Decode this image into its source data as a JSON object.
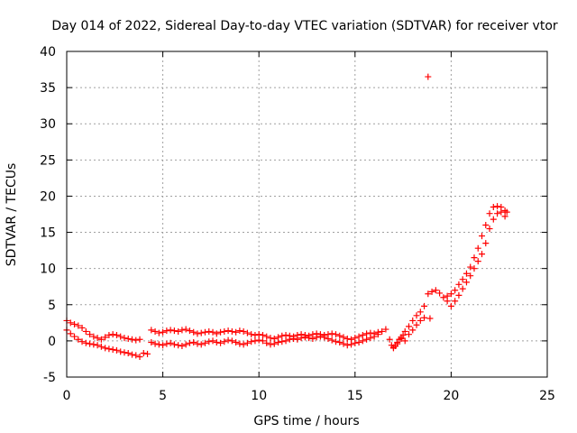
{
  "chart_data": {
    "type": "scatter",
    "title": "Day 014 of 2022, Sidereal Day-to-day VTEC variation (SDTVAR) for receiver vtor",
    "xlabel": "GPS time / hours",
    "ylabel": "SDTVAR / TECUs",
    "xlim": [
      0,
      25
    ],
    "ylim": [
      -5,
      40
    ],
    "xticks": [
      0,
      5,
      10,
      15,
      20,
      25
    ],
    "yticks": [
      -5,
      0,
      5,
      10,
      15,
      20,
      25,
      30,
      35,
      40
    ],
    "grid": true,
    "marker": "+",
    "color": "#ff0000",
    "series": [
      {
        "name": "SDTVAR",
        "points": [
          [
            0.0,
            2.8
          ],
          [
            0.2,
            2.5
          ],
          [
            0.4,
            2.3
          ],
          [
            0.6,
            2.1
          ],
          [
            0.8,
            1.8
          ],
          [
            1.0,
            1.3
          ],
          [
            1.2,
            0.9
          ],
          [
            1.4,
            0.6
          ],
          [
            1.6,
            0.4
          ],
          [
            1.8,
            0.2
          ],
          [
            2.0,
            0.5
          ],
          [
            2.2,
            0.8
          ],
          [
            2.4,
            0.9
          ],
          [
            2.6,
            0.8
          ],
          [
            2.8,
            0.6
          ],
          [
            3.0,
            0.4
          ],
          [
            3.2,
            0.3
          ],
          [
            3.4,
            0.2
          ],
          [
            3.6,
            0.1
          ],
          [
            3.8,
            0.2
          ],
          [
            0.0,
            1.5
          ],
          [
            0.2,
            1.0
          ],
          [
            0.4,
            0.6
          ],
          [
            0.6,
            0.2
          ],
          [
            0.8,
            -0.1
          ],
          [
            1.0,
            -0.3
          ],
          [
            1.2,
            -0.4
          ],
          [
            1.4,
            -0.5
          ],
          [
            1.6,
            -0.6
          ],
          [
            1.8,
            -0.8
          ],
          [
            2.0,
            -1.0
          ],
          [
            2.2,
            -1.1
          ],
          [
            2.4,
            -1.2
          ],
          [
            2.6,
            -1.3
          ],
          [
            2.8,
            -1.5
          ],
          [
            3.0,
            -1.6
          ],
          [
            3.2,
            -1.7
          ],
          [
            3.4,
            -1.9
          ],
          [
            3.6,
            -2.0
          ],
          [
            3.8,
            -2.2
          ],
          [
            4.0,
            -1.7
          ],
          [
            4.2,
            -1.8
          ],
          [
            4.4,
            1.5
          ],
          [
            4.6,
            1.3
          ],
          [
            4.8,
            1.1
          ],
          [
            5.0,
            1.2
          ],
          [
            5.2,
            1.4
          ],
          [
            5.4,
            1.5
          ],
          [
            5.6,
            1.4
          ],
          [
            5.8,
            1.3
          ],
          [
            6.0,
            1.5
          ],
          [
            6.2,
            1.6
          ],
          [
            6.4,
            1.4
          ],
          [
            6.6,
            1.2
          ],
          [
            6.8,
            1.0
          ],
          [
            7.0,
            1.1
          ],
          [
            7.2,
            1.2
          ],
          [
            7.4,
            1.3
          ],
          [
            7.6,
            1.2
          ],
          [
            7.8,
            1.0
          ],
          [
            8.0,
            1.2
          ],
          [
            8.2,
            1.3
          ],
          [
            8.4,
            1.4
          ],
          [
            8.6,
            1.3
          ],
          [
            8.8,
            1.2
          ],
          [
            9.0,
            1.4
          ],
          [
            9.2,
            1.3
          ],
          [
            9.4,
            1.1
          ],
          [
            9.6,
            0.9
          ],
          [
            9.8,
            0.8
          ],
          [
            10.0,
            0.9
          ],
          [
            10.2,
            0.8
          ],
          [
            4.4,
            -0.2
          ],
          [
            4.6,
            -0.4
          ],
          [
            4.8,
            -0.5
          ],
          [
            5.0,
            -0.6
          ],
          [
            5.2,
            -0.4
          ],
          [
            5.4,
            -0.3
          ],
          [
            5.6,
            -0.5
          ],
          [
            5.8,
            -0.6
          ],
          [
            6.0,
            -0.7
          ],
          [
            6.2,
            -0.5
          ],
          [
            6.4,
            -0.3
          ],
          [
            6.6,
            -0.2
          ],
          [
            6.8,
            -0.4
          ],
          [
            7.0,
            -0.5
          ],
          [
            7.2,
            -0.3
          ],
          [
            7.4,
            -0.1
          ],
          [
            7.6,
            0.0
          ],
          [
            7.8,
            -0.2
          ],
          [
            8.0,
            -0.3
          ],
          [
            8.2,
            -0.1
          ],
          [
            8.4,
            0.1
          ],
          [
            8.6,
            0.0
          ],
          [
            8.8,
            -0.2
          ],
          [
            9.0,
            -0.4
          ],
          [
            9.2,
            -0.5
          ],
          [
            9.4,
            -0.3
          ],
          [
            9.6,
            -0.1
          ],
          [
            9.8,
            0.0
          ],
          [
            10.0,
            0.1
          ],
          [
            10.2,
            0.0
          ],
          [
            10.4,
            0.6
          ],
          [
            10.6,
            0.4
          ],
          [
            10.8,
            0.3
          ],
          [
            11.0,
            0.5
          ],
          [
            11.2,
            0.7
          ],
          [
            11.4,
            0.8
          ],
          [
            11.6,
            0.7
          ],
          [
            11.8,
            0.6
          ],
          [
            12.0,
            0.8
          ],
          [
            12.2,
            0.9
          ],
          [
            12.4,
            0.8
          ],
          [
            12.6,
            0.7
          ],
          [
            12.8,
            0.9
          ],
          [
            13.0,
            1.0
          ],
          [
            13.2,
            0.9
          ],
          [
            13.4,
            0.8
          ],
          [
            13.6,
            0.9
          ],
          [
            13.8,
            1.0
          ],
          [
            14.0,
            0.9
          ],
          [
            14.2,
            0.7
          ],
          [
            10.4,
            -0.3
          ],
          [
            10.6,
            -0.5
          ],
          [
            10.8,
            -0.4
          ],
          [
            11.0,
            -0.2
          ],
          [
            11.2,
            -0.1
          ],
          [
            11.4,
            0.0
          ],
          [
            11.6,
            0.2
          ],
          [
            11.8,
            0.3
          ],
          [
            12.0,
            0.2
          ],
          [
            12.2,
            0.4
          ],
          [
            12.4,
            0.5
          ],
          [
            12.6,
            0.4
          ],
          [
            12.8,
            0.3
          ],
          [
            13.0,
            0.5
          ],
          [
            13.2,
            0.6
          ],
          [
            13.4,
            0.5
          ],
          [
            13.6,
            0.3
          ],
          [
            13.8,
            0.1
          ],
          [
            14.0,
            -0.1
          ],
          [
            14.2,
            -0.2
          ],
          [
            14.4,
            0.5
          ],
          [
            14.6,
            0.3
          ],
          [
            14.8,
            0.2
          ],
          [
            15.0,
            0.4
          ],
          [
            15.2,
            0.6
          ],
          [
            15.4,
            0.8
          ],
          [
            15.6,
            1.0
          ],
          [
            15.8,
            1.1
          ],
          [
            16.0,
            1.0
          ],
          [
            16.2,
            1.2
          ],
          [
            14.4,
            -0.4
          ],
          [
            14.6,
            -0.6
          ],
          [
            14.8,
            -0.5
          ],
          [
            15.0,
            -0.3
          ],
          [
            15.2,
            -0.2
          ],
          [
            15.4,
            0.0
          ],
          [
            15.6,
            0.2
          ],
          [
            15.8,
            0.4
          ],
          [
            16.0,
            0.6
          ],
          [
            16.2,
            0.9
          ],
          [
            16.4,
            1.3
          ],
          [
            16.6,
            1.6
          ],
          [
            16.8,
            0.2
          ],
          [
            16.9,
            -0.6
          ],
          [
            17.0,
            -0.9
          ],
          [
            17.1,
            -0.7
          ],
          [
            17.2,
            -0.4
          ],
          [
            17.3,
            0.2
          ],
          [
            17.4,
            0.5
          ],
          [
            17.5,
            0.8
          ],
          [
            17.6,
            1.3
          ],
          [
            17.8,
            2.0
          ],
          [
            18.0,
            2.8
          ],
          [
            18.2,
            3.5
          ],
          [
            18.4,
            4.0
          ],
          [
            18.6,
            4.8
          ],
          [
            18.8,
            6.5
          ],
          [
            19.0,
            6.8
          ],
          [
            19.2,
            7.0
          ],
          [
            19.4,
            6.6
          ],
          [
            17.0,
            -1.0
          ],
          [
            17.2,
            -0.2
          ],
          [
            17.4,
            0.3
          ],
          [
            17.6,
            0.0
          ],
          [
            17.8,
            0.9
          ],
          [
            18.0,
            1.5
          ],
          [
            18.2,
            2.2
          ],
          [
            18.4,
            2.8
          ],
          [
            18.6,
            3.2
          ],
          [
            18.9,
            3.1
          ],
          [
            19.6,
            6.0
          ],
          [
            19.8,
            6.2
          ],
          [
            20.0,
            6.5
          ],
          [
            20.2,
            7.0
          ],
          [
            20.4,
            7.8
          ],
          [
            20.6,
            8.5
          ],
          [
            20.8,
            9.3
          ],
          [
            21.0,
            10.2
          ],
          [
            21.2,
            11.5
          ],
          [
            21.4,
            12.8
          ],
          [
            19.8,
            5.5
          ],
          [
            20.0,
            4.8
          ],
          [
            20.2,
            5.5
          ],
          [
            20.4,
            6.3
          ],
          [
            20.6,
            7.2
          ],
          [
            20.8,
            8.1
          ],
          [
            21.0,
            9.0
          ],
          [
            21.2,
            10.0
          ],
          [
            21.4,
            11.0
          ],
          [
            21.6,
            12.0
          ],
          [
            21.6,
            14.5
          ],
          [
            21.8,
            16.0
          ],
          [
            22.0,
            17.6
          ],
          [
            22.2,
            18.5
          ],
          [
            22.4,
            18.6
          ],
          [
            22.6,
            18.5
          ],
          [
            22.8,
            18.0
          ],
          [
            22.9,
            17.8
          ],
          [
            21.8,
            13.5
          ],
          [
            22.0,
            15.5
          ],
          [
            22.2,
            16.8
          ],
          [
            22.4,
            17.6
          ],
          [
            22.6,
            17.8
          ],
          [
            22.8,
            17.2
          ],
          [
            18.8,
            36.5
          ]
        ]
      }
    ]
  }
}
